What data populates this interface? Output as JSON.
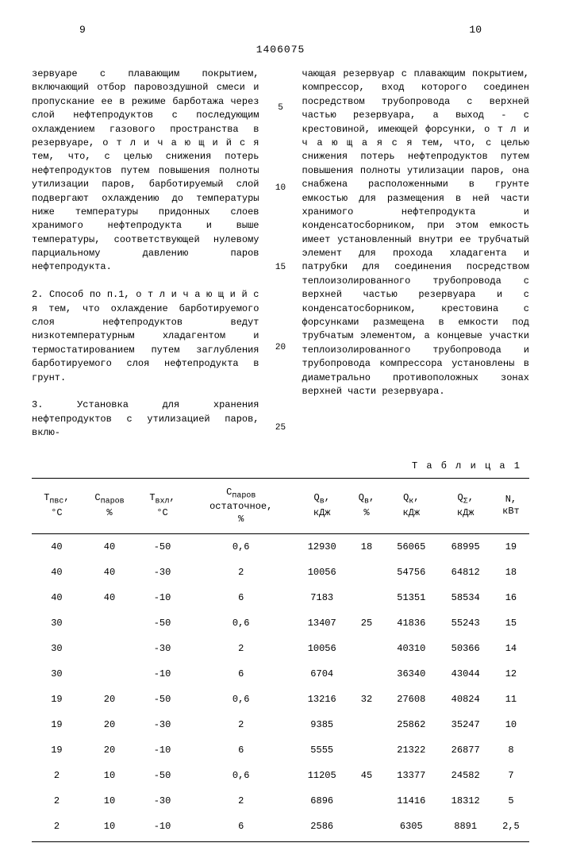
{
  "page_left": "9",
  "page_right": "10",
  "doc_number": "1406075",
  "col1_text": "зервуаре с плавающим покрытием, включающий отбор паровоздушной смеси и пропускание ее в режиме барботажа через слой нефтепродуктов с последующим охлаждением газового пространства в резервуаре, о т л и ч а ю щ и й с я тем, что, с целью снижения потерь нефтепродуктов путем повышения полноты утилизации паров, барботируемый слой подвергают охлаждению до температуры ниже температуры придонных слоев хранимого нефтепродукта и выше температуры, соответствующей нулевому парциальному давлению паров нефтепродукта.\n\n2. Способ по п.1, о т л и ч а ю щ и й с я тем, что охлаждение барботируемого слоя нефтепродуктов ведут низкотемпературным хладагентом и термостатированием путем заглубления барботируемого слоя нефтепродукта в грунт.\n\n3. Установка для хранения нефтепродуктов с утилизацией паров, вклю-",
  "col2_text": "чающая резервуар с плавающим покрытием, компрессор, вход которого соединен посредством трубопровода с верхней частью резервуара, а выход - с крестовиной, имеющей форсунки, о т л и ч а ю щ а я с я тем, что, с целью снижения потерь нефтепродуктов путем повышения полноты утилизации паров, она снабжена расположенными в грунте емкостью для размещения в ней части хранимого нефтепродукта и конденсатосборником, при этом емкость имеет установленный внутри ее трубчатый элемент для прохода хладагента и патрубки для соединения посредством теплоизолированного трубопровода с верхней частью резервуара и с конденсатосборником, крестовина с форсунками размещена в емкости под трубчатым элементом, а концевые участки теплоизолированного трубопровода и трубопровода компрессора установлены в диаметрально противоположных зонах верхней части резервуара.",
  "line_nums": [
    "5",
    "10",
    "15",
    "20",
    "25"
  ],
  "table_label": "Т а б л и ц а 1",
  "table": {
    "headers": [
      "T<sub>пвс</sub>,<br>°C",
      "C<sub>паров</sub><br>%",
      "T<sub>вхл</sub>,<br>°C",
      "C<sub>паров</sub><br>остаточное,<br>%",
      "Q<sub>в</sub>,<br>кДж",
      "Q<sub>в</sub>,<br>%",
      "Q<sub>к</sub>,<br>кДж",
      "Q<sub>Σ</sub>,<br>кДж",
      "N,<br>кВт"
    ],
    "rows": [
      [
        "40",
        "40",
        "-50",
        "0,6",
        "12930",
        "18",
        "56065",
        "68995",
        "19"
      ],
      [
        "40",
        "40",
        "-30",
        "2",
        "10056",
        "",
        "54756",
        "64812",
        "18"
      ],
      [
        "40",
        "40",
        "-10",
        "6",
        "7183",
        "",
        "51351",
        "58534",
        "16"
      ],
      [
        "30",
        "",
        "-50",
        "0,6",
        "13407",
        "25",
        "41836",
        "55243",
        "15"
      ],
      [
        "30",
        "",
        "-30",
        "2",
        "10056",
        "",
        "40310",
        "50366",
        "14"
      ],
      [
        "30",
        "",
        "-10",
        "6",
        "6704",
        "",
        "36340",
        "43044",
        "12"
      ],
      [
        "19",
        "20",
        "-50",
        "0,6",
        "13216",
        "32",
        "27608",
        "40824",
        "11"
      ],
      [
        "19",
        "20",
        "-30",
        "2",
        "9385",
        "",
        "25862",
        "35247",
        "10"
      ],
      [
        "19",
        "20",
        "-10",
        "6",
        "5555",
        "",
        "21322",
        "26877",
        "8"
      ],
      [
        "2",
        "10",
        "-50",
        "0,6",
        "11205",
        "45",
        "13377",
        "24582",
        "7"
      ],
      [
        "2",
        "10",
        "-30",
        "2",
        "6896",
        "",
        "11416",
        "18312",
        "5"
      ],
      [
        "2",
        "10",
        "-10",
        "6",
        "2586",
        "",
        "6305",
        "8891",
        "2,5"
      ]
    ]
  }
}
